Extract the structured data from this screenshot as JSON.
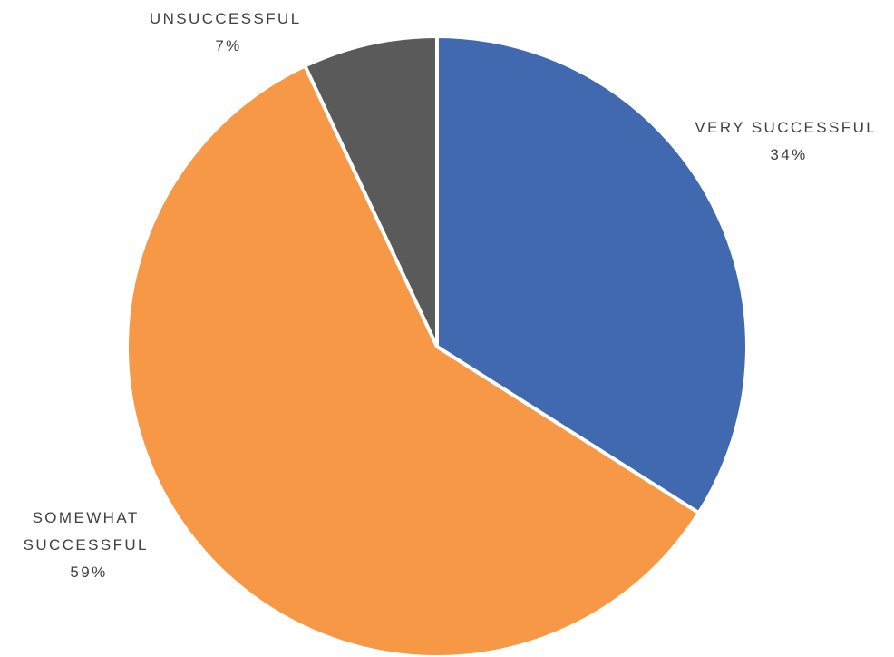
{
  "chart_data": {
    "type": "pie",
    "title": "",
    "slices": [
      {
        "label": "VERY SUCCESSFUL",
        "value": 34,
        "value_label": "34%",
        "color": "#4169B0"
      },
      {
        "label": "SOMEWHAT SUCCESSFUL",
        "label_lines": [
          "SOMEWHAT",
          "SUCCESSFUL"
        ],
        "value": 59,
        "value_label": "59%",
        "color": "#F69846"
      },
      {
        "label": "UNSUCCESSFUL",
        "value": 7,
        "value_label": "7%",
        "color": "#5A5A5A"
      }
    ],
    "start_angle": "12 o'clock",
    "direction": "clockwise",
    "legend": "none",
    "data_labels": "outside-end"
  }
}
